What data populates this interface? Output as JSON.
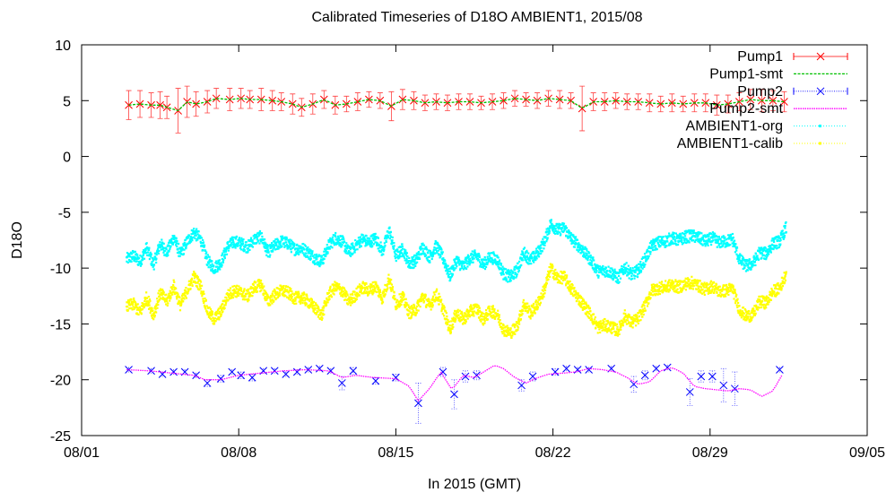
{
  "chart_data": {
    "type": "scatter",
    "title": "Calibrated Timeseries of D18O AMBIENT1, 2015/08",
    "xlabel": "In 2015 (GMT)",
    "ylabel": "D18O",
    "xlim": [
      0,
      35
    ],
    "ylim": [
      -25,
      10
    ],
    "x_ticks": [
      {
        "value": 0,
        "label": "08/01"
      },
      {
        "value": 7,
        "label": "08/08"
      },
      {
        "value": 14,
        "label": "08/15"
      },
      {
        "value": 21,
        "label": "08/22"
      },
      {
        "value": 28,
        "label": "08/29"
      },
      {
        "value": 35,
        "label": "09/05"
      }
    ],
    "y_ticks": [
      10,
      5,
      0,
      -5,
      -10,
      -15,
      -20,
      -25
    ],
    "x_unit_note": "days after 08/01 00:00",
    "legend_position": "top-right",
    "grid": false,
    "series": [
      {
        "name": "Pump1",
        "style": "points-errorbars",
        "color": "#ff0000",
        "x": [
          2.1,
          2.6,
          3.1,
          3.5,
          3.8,
          4.3,
          4.7,
          5.1,
          5.6,
          6.0,
          6.6,
          7.1,
          7.5,
          8.0,
          8.5,
          8.9,
          9.4,
          9.8,
          10.3,
          10.8,
          11.3,
          11.8,
          12.3,
          12.8,
          13.3,
          13.8,
          14.3,
          14.8,
          15.3,
          15.8,
          16.3,
          16.8,
          17.3,
          17.8,
          18.3,
          18.8,
          19.3,
          19.8,
          20.3,
          20.8,
          21.3,
          21.8,
          22.3,
          22.8,
          23.3,
          23.8,
          24.3,
          24.8,
          25.3,
          25.8,
          26.3,
          26.8,
          27.3,
          27.8,
          28.3,
          28.8,
          29.3,
          29.8,
          30.3,
          30.8,
          31.3
        ],
        "y": [
          4.6,
          4.7,
          4.6,
          4.6,
          4.4,
          4.1,
          4.9,
          4.7,
          4.9,
          5.2,
          5.1,
          5.2,
          5.1,
          5.1,
          5.0,
          4.9,
          4.7,
          4.4,
          4.7,
          5.1,
          4.6,
          4.7,
          4.9,
          5.1,
          5.0,
          4.5,
          5.1,
          5.0,
          4.8,
          4.9,
          4.8,
          4.9,
          4.9,
          4.8,
          4.9,
          5.0,
          5.2,
          5.1,
          5.0,
          5.2,
          5.1,
          5.0,
          4.3,
          4.9,
          4.9,
          5.0,
          4.9,
          4.9,
          4.8,
          4.7,
          4.8,
          4.7,
          4.8,
          4.8,
          4.6,
          4.7,
          4.9,
          5.1,
          5.0,
          5.0,
          4.9
        ],
        "error": [
          1.3,
          1.2,
          1.1,
          1.2,
          1.0,
          2.0,
          1.4,
          1.1,
          1.0,
          0.9,
          1.0,
          0.9,
          0.8,
          1.0,
          0.9,
          0.8,
          0.9,
          0.8,
          0.9,
          0.8,
          0.8,
          0.7,
          0.8,
          0.7,
          0.7,
          1.3,
          0.9,
          0.8,
          0.7,
          0.7,
          0.7,
          0.7,
          0.7,
          0.6,
          0.7,
          0.7,
          0.7,
          0.6,
          0.7,
          0.7,
          0.8,
          0.7,
          2.0,
          0.8,
          0.8,
          0.7,
          0.7,
          0.7,
          0.8,
          0.7,
          0.8,
          0.7,
          0.8,
          0.8,
          0.9,
          0.8,
          0.8,
          0.9,
          1.0,
          0.9,
          0.9
        ]
      },
      {
        "name": "Pump1-smt",
        "style": "line",
        "color": "#00c000",
        "derived_from": "Pump1"
      },
      {
        "name": "Pump2",
        "style": "points-errorbars",
        "color": "#0000ff",
        "x": [
          2.1,
          3.1,
          3.6,
          4.1,
          4.6,
          5.1,
          5.6,
          6.2,
          6.7,
          7.1,
          7.6,
          8.1,
          8.6,
          9.1,
          9.6,
          10.1,
          10.6,
          11.1,
          11.6,
          12.1,
          13.1,
          14.0,
          15.0,
          16.1,
          16.6,
          17.1,
          17.6,
          19.6,
          20.1,
          21.1,
          21.6,
          22.1,
          22.6,
          23.6,
          24.6,
          25.1,
          25.6,
          26.1,
          27.1,
          27.6,
          28.1,
          28.6,
          29.1,
          31.1
        ],
        "y": [
          -19.1,
          -19.2,
          -19.5,
          -19.3,
          -19.3,
          -19.6,
          -20.3,
          -19.9,
          -19.3,
          -19.6,
          -19.8,
          -19.2,
          -19.2,
          -19.5,
          -19.3,
          -19.1,
          -19.0,
          -19.2,
          -20.3,
          -19.2,
          -20.1,
          -19.8,
          -22.1,
          -19.3,
          -21.3,
          -19.7,
          -19.6,
          -20.5,
          -19.7,
          -19.3,
          -19.0,
          -19.1,
          -19.1,
          -19.0,
          -20.4,
          -19.6,
          -19.0,
          -18.9,
          -21.1,
          -19.7,
          -19.7,
          -20.5,
          -20.8,
          -19.1
        ],
        "error": [
          0.2,
          0.2,
          0.2,
          0.2,
          0.2,
          0.2,
          0.3,
          0.3,
          0.2,
          0.3,
          0.3,
          0.2,
          0.2,
          0.2,
          0.2,
          0.2,
          0.2,
          0.2,
          0.6,
          0.3,
          0.3,
          0.3,
          1.8,
          0.4,
          1.3,
          0.5,
          0.4,
          0.5,
          0.4,
          0.3,
          0.2,
          0.2,
          0.2,
          0.2,
          0.7,
          0.4,
          0.2,
          0.2,
          1.2,
          0.5,
          0.5,
          1.5,
          1.5,
          0.2
        ]
      },
      {
        "name": "Pump2-smt",
        "style": "line",
        "color": "#ff00ff",
        "x": [
          2.0,
          3.0,
          4.0,
          5.0,
          5.5,
          6.2,
          7.0,
          8.0,
          9.0,
          10.0,
          11.0,
          11.6,
          12.2,
          13.0,
          14.0,
          14.6,
          15.0,
          15.5,
          16.0,
          16.5,
          17.0,
          17.5,
          18.0,
          18.4,
          18.8,
          19.3,
          19.8,
          20.2,
          20.8,
          21.5,
          22.0,
          22.6,
          23.2,
          23.8,
          24.3,
          24.8,
          25.3,
          25.8,
          26.3,
          26.8,
          27.3,
          27.8,
          28.3,
          28.8,
          29.3,
          29.8,
          30.3,
          30.8,
          31.2
        ],
        "y": [
          -19.1,
          -19.2,
          -19.4,
          -19.6,
          -20.0,
          -20.0,
          -19.6,
          -19.4,
          -19.2,
          -19.1,
          -19.2,
          -19.8,
          -19.6,
          -19.8,
          -19.9,
          -20.6,
          -21.9,
          -20.8,
          -19.3,
          -20.9,
          -19.6,
          -19.8,
          -19.2,
          -18.7,
          -19.0,
          -19.8,
          -20.3,
          -19.9,
          -19.5,
          -19.4,
          -19.3,
          -19.0,
          -19.1,
          -19.3,
          -19.8,
          -20.4,
          -20.2,
          -19.2,
          -18.9,
          -19.4,
          -20.6,
          -20.8,
          -20.9,
          -21.0,
          -20.8,
          -20.9,
          -21.5,
          -21.0,
          -19.6
        ]
      },
      {
        "name": "AMBIENT1-org",
        "style": "dense-points",
        "color": "#00ffff",
        "x": [
          2.0,
          2.3,
          2.6,
          2.9,
          3.2,
          3.5,
          3.8,
          4.1,
          4.4,
          4.7,
          5.0,
          5.3,
          5.6,
          5.9,
          6.2,
          6.5,
          6.8,
          7.1,
          7.4,
          7.7,
          8.0,
          8.3,
          8.6,
          8.9,
          9.2,
          9.5,
          9.8,
          10.1,
          10.4,
          10.7,
          11.0,
          11.3,
          11.6,
          11.9,
          12.2,
          12.5,
          12.8,
          13.1,
          13.4,
          13.7,
          14.0,
          14.3,
          14.6,
          14.9,
          15.2,
          15.5,
          15.8,
          16.1,
          16.4,
          16.7,
          17.0,
          17.3,
          17.6,
          17.9,
          18.2,
          18.5,
          18.8,
          19.1,
          19.4,
          19.7,
          20.0,
          20.3,
          20.6,
          20.9,
          21.2,
          21.5,
          21.8,
          22.1,
          22.4,
          22.7,
          23.0,
          23.3,
          23.6,
          23.9,
          24.2,
          24.5,
          24.8,
          25.1,
          25.4,
          25.7,
          26.0,
          26.3,
          26.6,
          26.9,
          27.2,
          27.5,
          27.8,
          28.1,
          28.4,
          28.7,
          29.0,
          29.3,
          29.6,
          29.9,
          30.2,
          30.5,
          30.8,
          31.1,
          31.4
        ],
        "y": [
          -9.2,
          -8.9,
          -9.4,
          -8.2,
          -9.7,
          -7.8,
          -8.6,
          -7.2,
          -8.8,
          -7.6,
          -6.8,
          -7.4,
          -9.3,
          -10.0,
          -9.5,
          -8.1,
          -7.6,
          -7.8,
          -8.1,
          -7.4,
          -7.2,
          -8.6,
          -8.0,
          -7.6,
          -7.8,
          -8.3,
          -8.2,
          -8.6,
          -9.1,
          -9.4,
          -8.0,
          -7.3,
          -7.6,
          -8.6,
          -8.0,
          -7.4,
          -7.7,
          -7.3,
          -8.5,
          -6.6,
          -8.9,
          -8.3,
          -9.6,
          -9.3,
          -8.1,
          -9.0,
          -8.0,
          -9.1,
          -10.7,
          -9.3,
          -9.9,
          -9.1,
          -8.9,
          -9.7,
          -9.0,
          -9.2,
          -10.5,
          -10.8,
          -10.2,
          -8.6,
          -9.3,
          -8.7,
          -7.7,
          -6.0,
          -6.6,
          -6.4,
          -7.3,
          -7.9,
          -8.6,
          -9.3,
          -10.3,
          -10.2,
          -10.4,
          -10.9,
          -9.9,
          -10.6,
          -10.2,
          -9.2,
          -8.0,
          -7.7,
          -7.6,
          -7.3,
          -7.5,
          -7.2,
          -7.1,
          -7.3,
          -7.6,
          -7.3,
          -7.7,
          -7.6,
          -7.4,
          -9.2,
          -9.8,
          -9.6,
          -8.6,
          -8.7,
          -7.8,
          -7.6,
          -6.3
        ]
      },
      {
        "name": "AMBIENT1-calib",
        "style": "dense-points",
        "color": "#ffff00",
        "x": [
          2.0,
          2.3,
          2.6,
          2.9,
          3.2,
          3.5,
          3.8,
          4.1,
          4.4,
          4.7,
          5.0,
          5.3,
          5.6,
          5.9,
          6.2,
          6.5,
          6.8,
          7.1,
          7.4,
          7.7,
          8.0,
          8.3,
          8.6,
          8.9,
          9.2,
          9.5,
          9.8,
          10.1,
          10.4,
          10.7,
          11.0,
          11.3,
          11.6,
          11.9,
          12.2,
          12.5,
          12.8,
          13.1,
          13.4,
          13.7,
          14.0,
          14.3,
          14.6,
          14.9,
          15.2,
          15.5,
          15.8,
          16.1,
          16.4,
          16.7,
          17.0,
          17.3,
          17.6,
          17.9,
          18.2,
          18.5,
          18.8,
          19.1,
          19.4,
          19.7,
          20.0,
          20.3,
          20.6,
          20.9,
          21.2,
          21.5,
          21.8,
          22.1,
          22.4,
          22.7,
          23.0,
          23.3,
          23.6,
          23.9,
          24.2,
          24.5,
          24.8,
          25.1,
          25.4,
          25.7,
          26.0,
          26.3,
          26.6,
          26.9,
          27.2,
          27.5,
          27.8,
          28.1,
          28.4,
          28.7,
          29.0,
          29.3,
          29.6,
          29.9,
          30.2,
          30.5,
          30.8,
          31.1,
          31.4
        ],
        "y": [
          -13.5,
          -13.2,
          -14.0,
          -12.6,
          -14.2,
          -12.2,
          -13.0,
          -11.6,
          -13.3,
          -12.0,
          -10.8,
          -11.6,
          -13.8,
          -14.6,
          -13.9,
          -12.5,
          -12.0,
          -12.2,
          -12.5,
          -11.7,
          -11.5,
          -13.0,
          -12.4,
          -12.0,
          -12.2,
          -12.7,
          -12.6,
          -13.0,
          -13.6,
          -14.2,
          -12.4,
          -11.7,
          -12.0,
          -13.0,
          -12.4,
          -11.7,
          -12.0,
          -11.6,
          -12.7,
          -10.9,
          -13.2,
          -12.6,
          -14.0,
          -13.7,
          -12.5,
          -13.4,
          -12.3,
          -13.6,
          -15.5,
          -14.0,
          -14.6,
          -13.9,
          -13.6,
          -14.6,
          -13.8,
          -14.1,
          -15.5,
          -15.8,
          -15.2,
          -13.2,
          -14.0,
          -13.3,
          -12.0,
          -10.0,
          -10.9,
          -10.8,
          -11.8,
          -12.6,
          -13.4,
          -14.2,
          -15.3,
          -15.1,
          -15.3,
          -15.6,
          -14.3,
          -14.9,
          -14.5,
          -13.4,
          -12.0,
          -11.8,
          -11.7,
          -11.5,
          -11.7,
          -11.4,
          -11.3,
          -11.6,
          -11.9,
          -11.6,
          -12.1,
          -12.0,
          -11.8,
          -13.7,
          -14.3,
          -14.2,
          -13.0,
          -13.1,
          -12.1,
          -11.8,
          -10.4
        ]
      }
    ]
  }
}
